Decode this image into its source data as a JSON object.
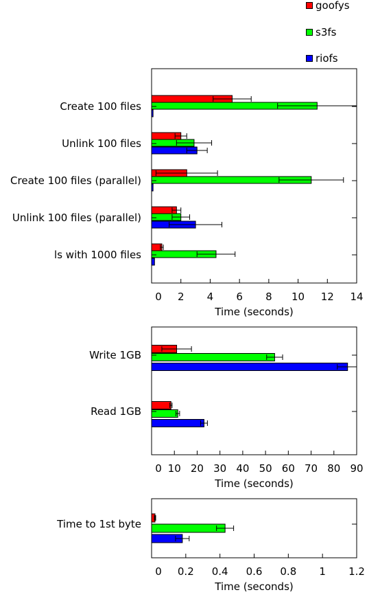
{
  "legend": [
    {
      "name": "goofys",
      "color": "#ff0000"
    },
    {
      "name": "s3fs",
      "color": "#00ff00"
    },
    {
      "name": "riofs",
      "color": "#0000ff"
    }
  ],
  "chart_data": [
    {
      "type": "bar",
      "orientation": "horizontal",
      "categories": [
        "Create 100 files",
        "Unlink 100 files",
        "Create 100 files (parallel)",
        "Unlink 100 files (parallel)",
        "ls with 1000 files"
      ],
      "xlabel": "Time (seconds)",
      "xlim": [
        0,
        14
      ],
      "xticks": [
        0,
        2,
        4,
        6,
        8,
        10,
        12,
        14
      ],
      "series": [
        {
          "name": "goofys",
          "values": [
            5.5,
            2.0,
            2.4,
            1.7,
            0.7
          ],
          "errors": [
            1.3,
            0.4,
            2.1,
            0.3,
            0.1
          ]
        },
        {
          "name": "s3fs",
          "values": [
            11.3,
            2.9,
            10.9,
            2.0,
            4.4
          ],
          "errors": [
            2.7,
            1.2,
            2.2,
            0.6,
            1.3
          ]
        },
        {
          "name": "riofs",
          "values": [
            0.1,
            3.1,
            0.1,
            3.0,
            0.2
          ],
          "errors": [
            0,
            0.7,
            0,
            1.8,
            0
          ]
        }
      ]
    },
    {
      "type": "bar",
      "orientation": "horizontal",
      "categories": [
        "Write 1GB",
        "Read 1GB"
      ],
      "xlabel": "Time (seconds)",
      "xlim": [
        0,
        90
      ],
      "xticks": [
        0,
        10,
        20,
        30,
        40,
        50,
        60,
        70,
        80,
        90
      ],
      "series": [
        {
          "name": "goofys",
          "values": [
            11,
            8.5
          ],
          "errors": [
            6.5,
            0.5
          ]
        },
        {
          "name": "s3fs",
          "values": [
            54,
            11.5
          ],
          "errors": [
            3.5,
            0.8
          ]
        },
        {
          "name": "riofs",
          "values": [
            86,
            23
          ],
          "errors": [
            4.5,
            1.5
          ]
        }
      ]
    },
    {
      "type": "bar",
      "orientation": "horizontal",
      "categories": [
        "Time to 1st byte"
      ],
      "xlabel": "Time (seconds)",
      "xlim": [
        0,
        1.2
      ],
      "xticks": [
        0,
        0.2,
        0.4,
        0.6,
        0.8,
        1,
        1.2
      ],
      "series": [
        {
          "name": "goofys",
          "values": [
            0.02
          ],
          "errors": [
            0.004
          ]
        },
        {
          "name": "s3fs",
          "values": [
            0.43
          ],
          "errors": [
            0.05
          ]
        },
        {
          "name": "riofs",
          "values": [
            0.18
          ],
          "errors": [
            0.04
          ]
        }
      ]
    }
  ]
}
